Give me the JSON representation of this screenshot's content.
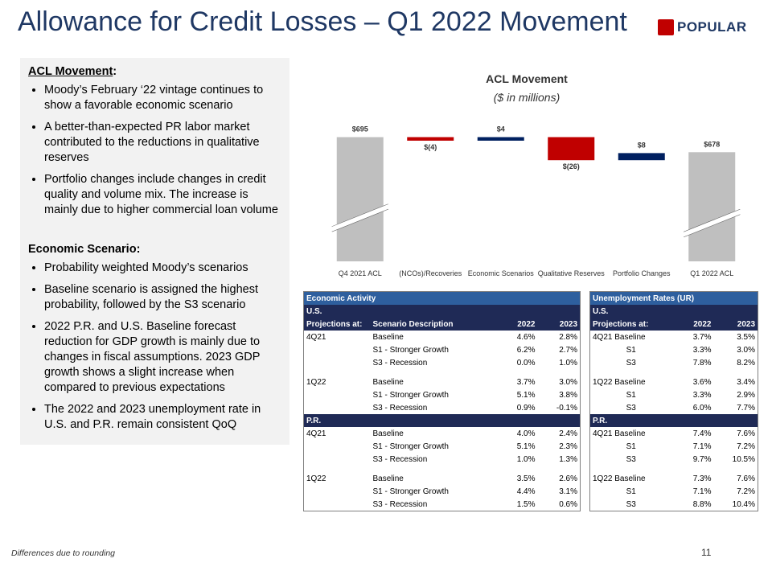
{
  "title": "Allowance for Credit Losses – Q1 2022 Movement",
  "logo": "POPULAR",
  "panel": {
    "heading1": "ACL Movement",
    "bullets1": [
      "Moody’s February ‘22 vintage continues to show a favorable economic scenario",
      "A better-than-expected PR labor market contributed to the reductions in qualitative reserves",
      "Portfolio changes include changes in credit quality and volume mix. The increase is mainly due to higher commercial loan volume"
    ],
    "heading2": "Economic Scenario:",
    "bullets2": [
      "Probability weighted Moody’s scenarios",
      "Baseline scenario is assigned the highest probability, followed by the S3 scenario",
      "2022 P.R. and U.S. Baseline forecast reduction for GDP growth is mainly due to changes in fiscal assumptions. 2023 GDP growth shows a slight increase when compared to previous expectations",
      "The 2022 and 2023 unemployment rate in U.S. and P.R. remain consistent QoQ"
    ]
  },
  "chart_data": {
    "type": "waterfall",
    "title": "ACL Movement",
    "subtitle": "($ in millions)",
    "categories": [
      "Q4 2021 ACL",
      "(NCOs)/Recoveries",
      "Economic Scenarios",
      "Qualitative Reserves",
      "Portfolio Changes",
      "Q1 2022 ACL"
    ],
    "values": [
      695,
      -4,
      4,
      -26,
      8,
      678
    ],
    "value_labels": [
      "$695",
      "$(4)",
      "$4",
      "$(26)",
      "$8",
      "$678"
    ],
    "measure": [
      "total",
      "relative",
      "relative",
      "relative",
      "relative",
      "total"
    ],
    "colors": {
      "total": "#bfbfbf",
      "increase": "#002060",
      "decrease": "#c00000"
    },
    "ylim": [
      555,
      700
    ]
  },
  "economic_activity": {
    "title": "Economic Activity",
    "columns": [
      "Projections at:",
      "Scenario Description",
      "2022",
      "2023"
    ],
    "sections": [
      {
        "name": "U.S.",
        "groups": [
          {
            "period": "4Q21",
            "rows": [
              [
                "Baseline",
                "4.6%",
                "2.8%"
              ],
              [
                "S1 - Stronger Growth",
                "6.2%",
                "2.7%"
              ],
              [
                "S3 - Recession",
                "0.0%",
                "1.0%"
              ]
            ]
          },
          {
            "period": "1Q22",
            "rows": [
              [
                "Baseline",
                "3.7%",
                "3.0%"
              ],
              [
                "S1 - Stronger Growth",
                "5.1%",
                "3.8%"
              ],
              [
                "S3 - Recession",
                "0.9%",
                "-0.1%"
              ]
            ]
          }
        ]
      },
      {
        "name": "P.R.",
        "groups": [
          {
            "period": "4Q21",
            "rows": [
              [
                "Baseline",
                "4.0%",
                "2.4%"
              ],
              [
                "S1 - Stronger Growth",
                "5.1%",
                "2.3%"
              ],
              [
                "S3 - Recession",
                "1.0%",
                "1.3%"
              ]
            ]
          },
          {
            "period": "1Q22",
            "rows": [
              [
                "Baseline",
                "3.5%",
                "2.6%"
              ],
              [
                "S1 - Stronger Growth",
                "4.4%",
                "3.1%"
              ],
              [
                "S3 - Recession",
                "1.5%",
                "0.6%"
              ]
            ]
          }
        ]
      }
    ]
  },
  "unemployment": {
    "title": "Unemployment Rates (UR)",
    "columns": [
      "Projections at:",
      "2022",
      "2023"
    ],
    "sections": [
      {
        "name": "U.S.",
        "groups": [
          {
            "rows": [
              [
                "4Q21 Baseline",
                "3.7%",
                "3.5%"
              ],
              [
                "S1",
                "3.3%",
                "3.0%"
              ],
              [
                "S3",
                "7.8%",
                "8.2%"
              ]
            ]
          },
          {
            "rows": [
              [
                "1Q22 Baseline",
                "3.6%",
                "3.4%"
              ],
              [
                "S1",
                "3.3%",
                "2.9%"
              ],
              [
                "S3",
                "6.0%",
                "7.7%"
              ]
            ]
          }
        ]
      },
      {
        "name": "P.R.",
        "groups": [
          {
            "rows": [
              [
                "4Q21 Baseline",
                "7.4%",
                "7.6%"
              ],
              [
                "S1",
                "7.1%",
                "7.2%"
              ],
              [
                "S3",
                "9.7%",
                "10.5%"
              ]
            ]
          },
          {
            "rows": [
              [
                "1Q22 Baseline",
                "7.3%",
                "7.6%"
              ],
              [
                "S1",
                "7.1%",
                "7.2%"
              ],
              [
                "S3",
                "8.8%",
                "10.4%"
              ]
            ]
          }
        ]
      }
    ]
  },
  "footnote": "Differences due to rounding",
  "page_number": "11"
}
